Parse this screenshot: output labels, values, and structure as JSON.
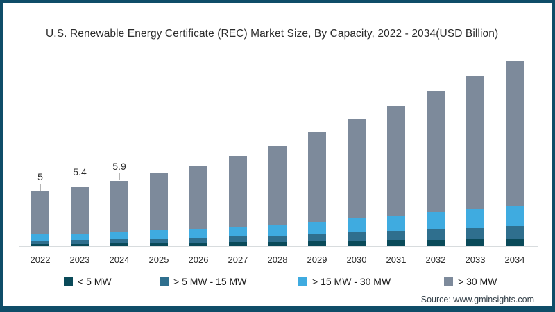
{
  "title": "U.S. Renewable Energy Certificate (REC) Market Size, By Capacity, 2022 - 2034(USD Billion)",
  "source": "Source: www.gminsights.com",
  "frame_color": "#0f4d68",
  "chart_data": {
    "type": "bar",
    "stacked": true,
    "title": "U.S. Renewable Energy Certificate (REC) Market Size, By Capacity, 2022 - 2034(USD Billion)",
    "xlabel": "",
    "ylabel": "USD Billion",
    "grid": false,
    "legend_position": "bottom",
    "categories": [
      "2022",
      "2023",
      "2024",
      "2025",
      "2026",
      "2027",
      "2028",
      "2029",
      "2030",
      "2031",
      "2032",
      "2033",
      "2034"
    ],
    "series": [
      {
        "name": "< 5 MW",
        "color": "#0a4a59",
        "values": [
          0.2,
          0.22,
          0.25,
          0.28,
          0.31,
          0.35,
          0.39,
          0.44,
          0.49,
          0.54,
          0.6,
          0.66,
          0.72
        ]
      },
      {
        "name": "> 5 MW - 15 MW",
        "color": "#2f6f8e",
        "values": [
          0.3,
          0.33,
          0.37,
          0.42,
          0.47,
          0.52,
          0.58,
          0.66,
          0.75,
          0.83,
          0.92,
          1.0,
          1.1
        ]
      },
      {
        "name": "> 15 MW - 30 MW",
        "color": "#3fabe0",
        "values": [
          0.55,
          0.6,
          0.66,
          0.73,
          0.81,
          0.9,
          1.0,
          1.13,
          1.26,
          1.4,
          1.56,
          1.7,
          1.85
        ]
      },
      {
        "name": "> 30 MW",
        "color": "#7d8a9b",
        "values": [
          3.95,
          4.25,
          4.62,
          5.17,
          5.71,
          6.43,
          7.13,
          8.07,
          9.0,
          9.93,
          11.02,
          12.04,
          13.13
        ]
      }
    ],
    "totals": [
      5,
      5.4,
      5.9,
      6.6,
      7.3,
      8.2,
      9.1,
      10.3,
      11.5,
      12.7,
      14.1,
      15.4,
      16.8
    ],
    "data_labels": [
      {
        "index": 0,
        "text": "5"
      },
      {
        "index": 1,
        "text": "5.4"
      },
      {
        "index": 2,
        "text": "5.9"
      }
    ]
  },
  "legend": {
    "items": [
      {
        "label": "< 5 MW",
        "color": "#0a4a59"
      },
      {
        "label": "> 5 MW - 15 MW",
        "color": "#2f6f8e"
      },
      {
        "label": "> 15 MW - 30 MW",
        "color": "#3fabe0"
      },
      {
        "label": "> 30 MW",
        "color": "#7d8a9b"
      }
    ]
  }
}
